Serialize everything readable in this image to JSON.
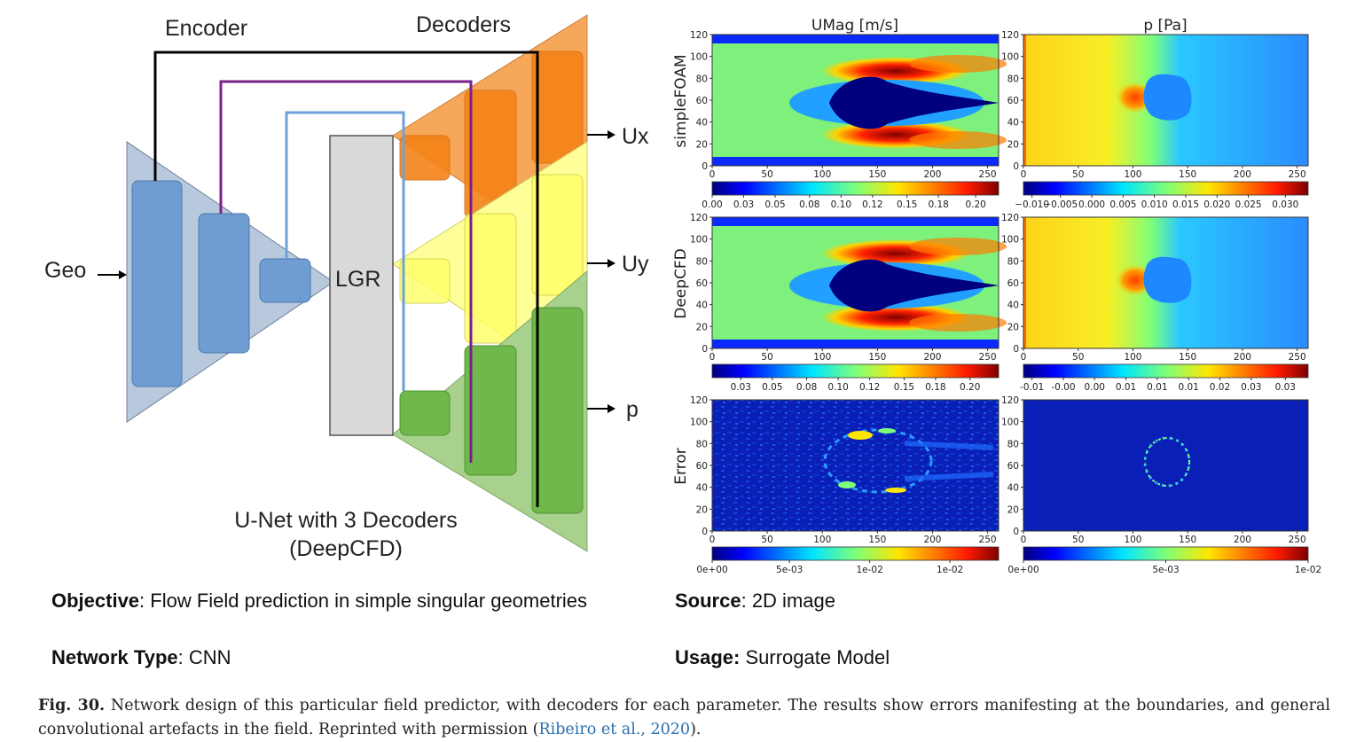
{
  "diagram": {
    "encoder_label": "Encoder",
    "decoders_label": "Decoders",
    "lgr_label": "LGR",
    "input_label": "Geo",
    "outputs": [
      "Ux",
      "Uy",
      "p"
    ],
    "network_title_line1": "U-Net with 3 Decoders",
    "network_title_line2": "(DeepCFD)",
    "colors": {
      "encoder_fill": "#b8c9de",
      "encoder_block": "#6f9dd1",
      "lgr_fill": "#d9d9d9",
      "decoder_ux": "#f7a75a",
      "decoder_uy": "#ffff99",
      "decoder_p": "#a9d18e",
      "skip_black": "#000000",
      "skip_purple": "#7b1f8c",
      "skip_blue": "#6fa0d8"
    }
  },
  "plots": {
    "col_titles": [
      "UMag [m/s]",
      "p [Pa]"
    ],
    "row_labels": [
      "simpleFOAM",
      "DeepCFD",
      "Error"
    ],
    "x_ticks": [
      "0",
      "50",
      "100",
      "150",
      "200",
      "250"
    ],
    "y_ticks": [
      "0",
      "20",
      "40",
      "60",
      "80",
      "100",
      "120"
    ],
    "colorbars": {
      "simpleFOAM_umag": [
        "0.00",
        "0.03",
        "0.05",
        "0.08",
        "0.10",
        "0.12",
        "0.15",
        "0.18",
        "0.20"
      ],
      "simpleFOAM_p": [
        "−0.010",
        "−0.005",
        "0.000",
        "0.005",
        "0.010",
        "0.015",
        "0.020",
        "0.025",
        "0.030"
      ],
      "deepcfd_umag": [
        "0.03",
        "0.05",
        "0.08",
        "0.10",
        "0.12",
        "0.15",
        "0.18",
        "0.20"
      ],
      "deepcfd_p": [
        "-0.01",
        "-0.00",
        "0.00",
        "0.01",
        "0.01",
        "0.01",
        "0.02",
        "0.03",
        "0.03"
      ],
      "error_umag": [
        "0e+00",
        "5e-03",
        "1e-02",
        "1e-02"
      ],
      "error_p": [
        "0e+00",
        "5e-03",
        "1e-02"
      ]
    }
  },
  "info": {
    "objective_key": "Objective",
    "objective_val": ": Flow Field prediction in simple singular geometries",
    "source_key": "Source",
    "source_val": ": 2D image",
    "network_key": "Network Type",
    "network_val": ": CNN",
    "usage_key": "Usage:",
    "usage_val": " Surrogate Model"
  },
  "caption": {
    "fig_label": "Fig. 30.",
    "text": " Network design of this particular field predictor, with decoders for each parameter. The results show errors manifesting at the boundaries, and general convolutional artefacts in the field. Reprinted with permission (",
    "ref": "Ribeiro et al., 2020",
    "tail": ")."
  }
}
